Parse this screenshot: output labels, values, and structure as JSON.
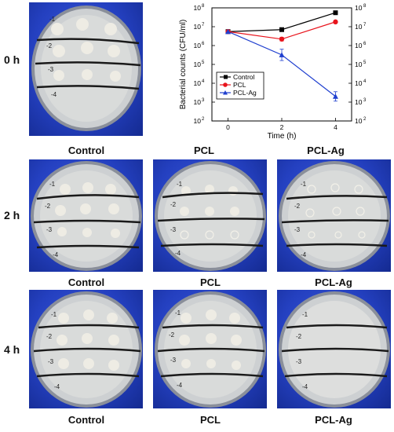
{
  "row_labels": [
    "0 h",
    "2 h",
    "4 h"
  ],
  "col_labels_row1": [
    "Control",
    "PCL",
    "PCL-Ag"
  ],
  "col_labels_row2": [
    "Control",
    "PCL",
    "PCL-Ag"
  ],
  "col_labels_row3": [
    "Control",
    "PCL",
    "PCL-Ag"
  ],
  "plate_marks": [
    "-1",
    "-2",
    "-3",
    "-4"
  ],
  "colors": {
    "control": "#000000",
    "pcl": "#e8141c",
    "pcl_ag": "#1f3fcf",
    "plate_bg": "#2a46c8"
  },
  "chart_data": {
    "type": "line",
    "xlabel": "Time (h)",
    "ylabel": "Bacterial counts (CFU/ml)",
    "x": [
      0,
      2,
      4
    ],
    "xticks": [
      "0",
      "2",
      "4"
    ],
    "xlim": [
      -0.6,
      4.6
    ],
    "ylim_log10": [
      2,
      8
    ],
    "yticks": [
      "10",
      "10",
      "10",
      "10",
      "10",
      "10",
      "10"
    ],
    "ytick_exponents": [
      "2",
      "3",
      "4",
      "5",
      "6",
      "7",
      "8"
    ],
    "log_scale_y": true,
    "legend_position": "center-left",
    "series": [
      {
        "name": "Control",
        "color": "#000000",
        "marker": "square",
        "values": [
          5500000,
          7000000,
          55000000
        ],
        "errors_log": [
          0,
          0.05,
          0.05
        ]
      },
      {
        "name": "PCL",
        "color": "#e8141c",
        "marker": "circle",
        "values": [
          5500000,
          2200000,
          18000000
        ],
        "errors_log": [
          0,
          0.1,
          0.05
        ]
      },
      {
        "name": "PCL-Ag",
        "color": "#1f3fcf",
        "marker": "triangle",
        "values": [
          5500000,
          320000,
          2000
        ],
        "errors_log": [
          0,
          0.3,
          0.25
        ]
      }
    ]
  }
}
